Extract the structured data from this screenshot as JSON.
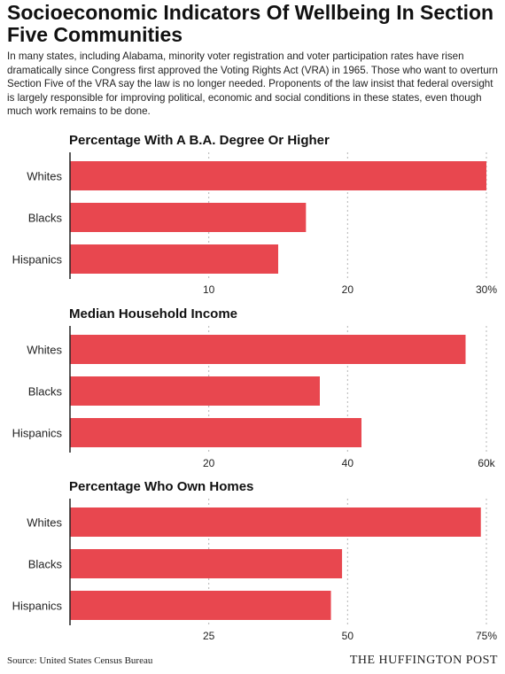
{
  "header": {
    "title": "Socioeconomic Indicators Of Wellbeing In Section Five Communities",
    "intro": "In many states, including Alabama, minority voter registration and voter participation rates have risen dramatically since Congress first approved the Voting Rights Act (VRA) in 1965. Those who want to overturn Section Five of the VRA say the law is no longer needed. Proponents of the law insist that federal oversight is largely responsible for improving political, economic and social conditions in these states, even though much work remains to be done."
  },
  "colors": {
    "bar": "#e8474f",
    "grid": "#b5b5b5",
    "axis": "#222222"
  },
  "chart_data": [
    {
      "type": "bar",
      "orientation": "horizontal",
      "title": "Percentage With A B.A. Degree Or Higher",
      "categories": [
        "Whites",
        "Blacks",
        "Hispanics"
      ],
      "values": [
        30,
        17,
        15
      ],
      "xlim": [
        0,
        30
      ],
      "ticks": [
        10,
        20,
        30
      ],
      "tick_labels": [
        "10",
        "20",
        "30%"
      ],
      "grid": true
    },
    {
      "type": "bar",
      "orientation": "horizontal",
      "title": "Median Household Income",
      "categories": [
        "Whites",
        "Blacks",
        "Hispanics"
      ],
      "values": [
        57,
        36,
        42
      ],
      "xlim": [
        0,
        60
      ],
      "ticks": [
        20,
        40,
        60
      ],
      "tick_labels": [
        "20",
        "40",
        "60k"
      ],
      "grid": true
    },
    {
      "type": "bar",
      "orientation": "horizontal",
      "title": "Percentage Who Own Homes",
      "categories": [
        "Whites",
        "Blacks",
        "Hispanics"
      ],
      "values": [
        74,
        49,
        47
      ],
      "xlim": [
        0,
        75
      ],
      "ticks": [
        25,
        50,
        75
      ],
      "tick_labels": [
        "25",
        "50",
        "75%"
      ],
      "grid": true
    }
  ],
  "footer": {
    "source": "Source: United States Census Bureau",
    "brand": "THE HUFFINGTON POST"
  }
}
